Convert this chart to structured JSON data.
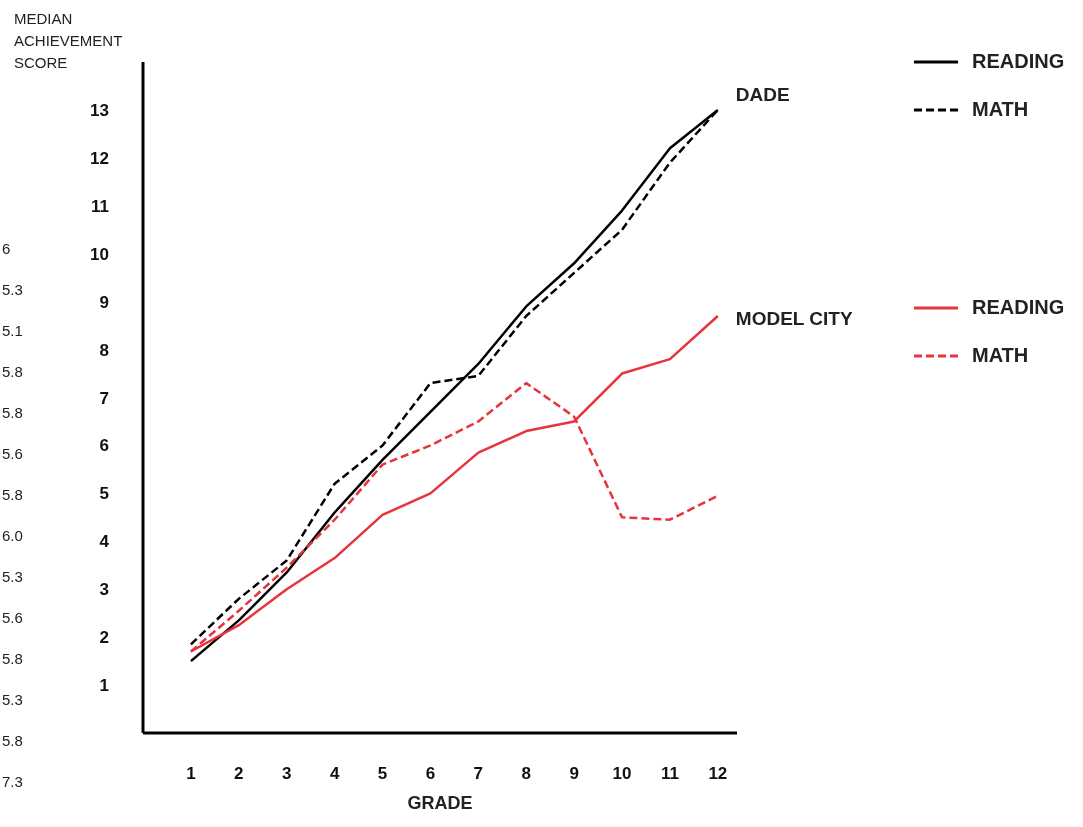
{
  "chart_data": {
    "type": "line",
    "ylabel": "MEDIAN ACHIEVEMENT SCORE",
    "xlabel": "GRADE",
    "x": [
      1,
      2,
      3,
      4,
      5,
      6,
      7,
      8,
      9,
      10,
      11,
      12
    ],
    "xlim": [
      0,
      12.4
    ],
    "xticks": [
      1,
      2,
      3,
      4,
      5,
      6,
      7,
      8,
      9,
      10,
      11,
      12
    ],
    "ylim": [
      0,
      14
    ],
    "yticks": [
      1,
      2,
      3,
      4,
      5,
      6,
      7,
      8,
      9,
      10,
      11,
      12,
      13
    ],
    "grid": false,
    "legend": "right",
    "marker": "none",
    "series": [
      {
        "name": "READING",
        "color": "#000000",
        "line_style": "solid",
        "values": [
          1.5,
          2.35,
          3.35,
          4.6,
          5.7,
          6.7,
          7.7,
          8.9,
          9.8,
          10.9,
          12.2,
          13
        ]
      },
      {
        "name": "MATH",
        "color": "#000000",
        "line_style": "dashed",
        "values": [
          1.85,
          2.8,
          3.6,
          5.2,
          6,
          7.3,
          7.45,
          8.7,
          9.6,
          10.5,
          11.9,
          13
        ]
      },
      {
        "name": "READING",
        "color": "#e8323c",
        "line_style": "solid",
        "values": [
          1.7,
          2.25,
          3,
          3.65,
          4.55,
          5,
          5.85,
          6.3,
          6.5,
          7.5,
          7.8,
          8.7
        ]
      },
      {
        "name": "MATH",
        "color": "#e8323c",
        "line_style": "dashed",
        "values": [
          1.7,
          2.55,
          3.45,
          4.45,
          5.6,
          6,
          6.5,
          7.3,
          6.6,
          4.5,
          4.45,
          4.95
        ]
      }
    ],
    "annotations": [
      {
        "text": "DADE",
        "x": 12,
        "y": 13
      },
      {
        "text": "MODEL CITY",
        "x": 12,
        "y": 8.7
      },
      "6",
      "5.3",
      "5.1",
      "5.8",
      "5.8",
      "5.6",
      "5.8",
      "6.0",
      "5.3",
      "5.6",
      "5.8",
      "5.3",
      "5.8",
      "7.3"
    ]
  }
}
